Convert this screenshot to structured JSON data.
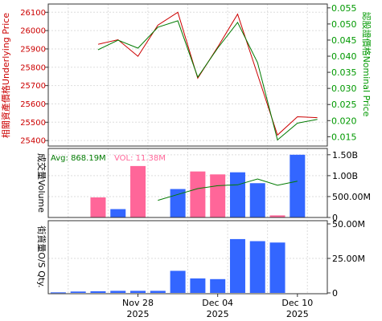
{
  "chart_data": [
    {
      "type": "line",
      "name": "price-panel",
      "dates": [
        "2025-11-24",
        "2025-11-25",
        "2025-11-26",
        "2025-11-27",
        "2025-11-28",
        "2025-12-01",
        "2025-12-02",
        "2025-12-03",
        "2025-12-04",
        "2025-12-05",
        "2025-12-08",
        "2025-12-09",
        "2025-12-10",
        "2025-12-11"
      ],
      "left_axis": {
        "label": "相關資產價格Underlying Price",
        "color": "#cc0000",
        "ylim": [
          25370,
          26145
        ],
        "ticks": [
          26100,
          26000,
          25900,
          25800,
          25700,
          25600,
          25500,
          25400
        ]
      },
      "right_axis": {
        "label": "認股證價格Nominal Price",
        "color": "#009900",
        "ylim": [
          0.0121,
          0.0562
        ],
        "ticks": [
          "0.055",
          "0.050",
          "0.045",
          "0.040",
          "0.035",
          "0.030",
          "0.025",
          "0.020",
          "0.015"
        ]
      },
      "series": [
        {
          "axis": "left",
          "color": "#cc0000",
          "values": [
            null,
            null,
            25925,
            25950,
            25860,
            26030,
            26100,
            25740,
            25910,
            26090,
            25760,
            25430,
            25530,
            25525
          ]
        },
        {
          "axis": "right",
          "color": "#007a00",
          "values": [
            null,
            null,
            0.042,
            0.045,
            0.0425,
            0.049,
            0.051,
            0.0335,
            0.0425,
            0.0505,
            0.038,
            0.014,
            0.0192,
            0.0204
          ]
        }
      ]
    },
    {
      "type": "bar",
      "name": "turnover-panel",
      "axis_label": "成交量Volume",
      "ticks": [
        "1.50B",
        "1.00B",
        "500.00M",
        "0"
      ],
      "ylim": [
        0,
        1.65
      ],
      "legend": {
        "avg_label": "Avg: 868.19M",
        "avg_color": "#007a00",
        "vol_label": "VOL: 11.38M",
        "vol_color": "#ff6699"
      },
      "up_color": "#ff6699",
      "down_color": "#3366ff",
      "values": [
        null,
        null,
        0.48,
        0.2,
        1.23,
        null,
        0.68,
        1.1,
        1.03,
        1.08,
        0.82,
        0.05,
        1.5,
        null
      ],
      "colors": [
        null,
        null,
        "up",
        "down",
        "up",
        null,
        "down",
        "up",
        "up",
        "down",
        "down",
        "up",
        "down",
        null
      ],
      "average": {
        "color": "#007a00",
        "values": [
          null,
          null,
          null,
          null,
          null,
          0.41,
          0.55,
          0.69,
          0.76,
          0.78,
          0.92,
          0.77,
          0.87,
          null
        ]
      }
    },
    {
      "type": "bar",
      "name": "shortsell-panel",
      "axis_label": "街貨量O/S Qty.",
      "ticks": [
        "50.00M",
        "25.00M",
        "0"
      ],
      "ylim": [
        0,
        50
      ],
      "color": "#3366ff",
      "values": [
        0.4,
        1.0,
        1.2,
        1.5,
        1.5,
        1.5,
        16.0,
        10.5,
        10.0,
        39.0,
        37.5,
        36.5,
        null,
        null
      ],
      "x_ticks": [
        {
          "index": 4,
          "line1": "Nov 28",
          "line2": "2025"
        },
        {
          "index": 8,
          "line1": "Dec 04",
          "line2": "2025"
        },
        {
          "index": 12,
          "line1": "Dec 10",
          "line2": "2025"
        }
      ]
    }
  ]
}
